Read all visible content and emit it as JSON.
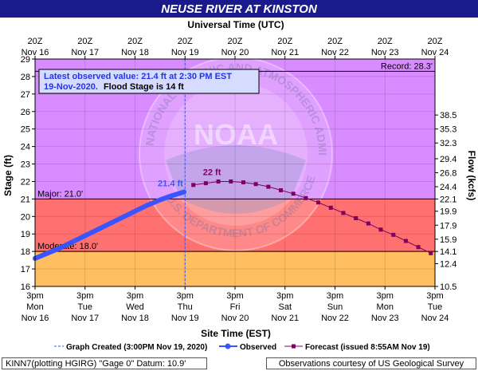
{
  "chart_data": {
    "type": "line",
    "title": "NEUSE RIVER AT KINSTON",
    "top_axis_title": "Universal Time (UTC)",
    "xlabel": "Site Time (EST)",
    "ylabel": "Stage (ft)",
    "ylabel_right": "Flow (kcfs)",
    "ylim": [
      16,
      29
    ],
    "yticks": [
      16,
      17,
      18,
      19,
      20,
      21,
      22,
      23,
      24,
      25,
      26,
      27,
      28,
      29
    ],
    "right_ticks": [
      {
        "stage": 16.0,
        "label": "10.5"
      },
      {
        "stage": 17.3,
        "label": "12.4"
      },
      {
        "stage": 18.0,
        "label": "14.1"
      },
      {
        "stage": 18.7,
        "label": "15.9"
      },
      {
        "stage": 19.5,
        "label": "17.9"
      },
      {
        "stage": 20.3,
        "label": "19.9"
      },
      {
        "stage": 21.0,
        "label": "22.1"
      },
      {
        "stage": 21.7,
        "label": "24.4"
      },
      {
        "stage": 22.5,
        "label": "26.8"
      },
      {
        "stage": 23.3,
        "label": "29.4"
      },
      {
        "stage": 24.2,
        "label": "32.3"
      },
      {
        "stage": 25.0,
        "label": "35.3"
      },
      {
        "stage": 25.8,
        "label": "38.5"
      }
    ],
    "x_days": [
      "Nov 16",
      "Nov 17",
      "Nov 18",
      "Nov 19",
      "Nov 20",
      "Nov 21",
      "Nov 22",
      "Nov 23",
      "Nov 24"
    ],
    "x_time": "3pm",
    "x_weekdays": [
      "Mon",
      "Tue",
      "Wed",
      "Thu",
      "Fri",
      "Sat",
      "Sun",
      "Mon",
      "Tue"
    ],
    "top_time": "20Z",
    "flood_categories": [
      {
        "name": "Major",
        "label": "Major: 21.0'",
        "threshold": 21.0,
        "color": "#ff7070"
      },
      {
        "name": "Moderate",
        "label": "Moderate: 18.0'",
        "threshold": 18.0,
        "color": "#ffbf60"
      },
      {
        "name": "Record",
        "label": "Record: 28.3'",
        "threshold": 28.3,
        "color": "#d98cff"
      }
    ],
    "record_band_color": "#e8a8f8",
    "annotation": {
      "line1": "Latest observed value: 21.4 ft at 2:30 PM EST",
      "line2_date": "19-Nov-2020.",
      "line2_rest": "Flood Stage is 14 ft"
    },
    "peak_label": "22 ft",
    "obs_label": "21.4 ft",
    "observed": {
      "name": "Observed",
      "color": "#3a55ff",
      "points": [
        {
          "x": "11/16 3:00pm",
          "y": 17.6
        },
        {
          "x": "11/16 9:00pm",
          "y": 17.9
        },
        {
          "x": "11/17 3:00am",
          "y": 18.2
        },
        {
          "x": "11/17 9:00am",
          "y": 18.55
        },
        {
          "x": "11/17 3:00pm",
          "y": 18.9
        },
        {
          "x": "11/17 9:00pm",
          "y": 19.25
        },
        {
          "x": "11/18 3:00am",
          "y": 19.6
        },
        {
          "x": "11/18 9:00am",
          "y": 19.95
        },
        {
          "x": "11/18 3:00pm",
          "y": 20.3
        },
        {
          "x": "11/18 9:00pm",
          "y": 20.65
        },
        {
          "x": "11/19 3:00am",
          "y": 20.95
        },
        {
          "x": "11/19 9:00am",
          "y": 21.2
        },
        {
          "x": "11/19 2:30pm",
          "y": 21.4
        }
      ]
    },
    "forecast": {
      "name": "Forecast (issued 8:55AM Nov 19)",
      "color": "#800060",
      "points": [
        {
          "x": "11/19 7:00pm",
          "y": 21.8
        },
        {
          "x": "11/20 1:00am",
          "y": 21.9
        },
        {
          "x": "11/20 7:00am",
          "y": 22.0
        },
        {
          "x": "11/20 1:00pm",
          "y": 22.0
        },
        {
          "x": "11/20 7:00pm",
          "y": 21.95
        },
        {
          "x": "11/21 1:00am",
          "y": 21.85
        },
        {
          "x": "11/21 7:00am",
          "y": 21.7
        },
        {
          "x": "11/21 1:00pm",
          "y": 21.5
        },
        {
          "x": "11/21 7:00pm",
          "y": 21.3
        },
        {
          "x": "11/22 1:00am",
          "y": 21.05
        },
        {
          "x": "11/22 7:00am",
          "y": 20.8
        },
        {
          "x": "11/22 1:00pm",
          "y": 20.5
        },
        {
          "x": "11/22 7:00pm",
          "y": 20.2
        },
        {
          "x": "11/23 1:00am",
          "y": 19.9
        },
        {
          "x": "11/23 7:00am",
          "y": 19.6
        },
        {
          "x": "11/23 1:00pm",
          "y": 19.25
        },
        {
          "x": "11/23 7:00pm",
          "y": 18.95
        },
        {
          "x": "11/24 1:00am",
          "y": 18.6
        },
        {
          "x": "11/24 7:00am",
          "y": 18.25
        },
        {
          "x": "11/24 1:00pm",
          "y": 17.9
        }
      ]
    },
    "graph_created": {
      "label": "Graph Created (3:00PM Nov 19, 2020)",
      "x": "11/19 3:00pm"
    },
    "watermark_text": "NOAA",
    "watermark_ring_top": "NATIONAL OCEANIC AND ATMOSPHERIC ADMINISTRATION",
    "watermark_ring_bottom": "U.S. DEPARTMENT OF COMMERCE",
    "legend": [
      {
        "label": "Graph Created (3:00PM Nov 19, 2020)"
      },
      {
        "label": "Observed"
      },
      {
        "label": "Forecast (issued 8:55AM Nov 19)"
      }
    ]
  },
  "footer": {
    "left": "KINN7(plotting HGIRG) \"Gage 0\" Datum: 10.9'",
    "right": "Observations courtesy of US Geological Survey"
  },
  "colors": {
    "title_bar": "#1a1a8c",
    "title_text": "#ffffff",
    "axis_text": "#000000",
    "annotation_blue": "#2233ee"
  }
}
